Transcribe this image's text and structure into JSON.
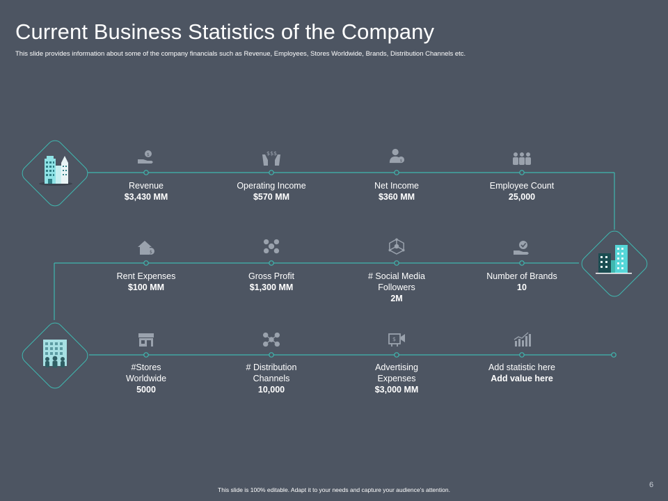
{
  "header": {
    "title": "Current Business Statistics of the Company",
    "subtitle": "This slide provides information about some of the company financials such as Revenue, Employees, Stores Worldwide, Brands, Distribution Channels etc."
  },
  "rows": [
    [
      {
        "icon": "money-hand-icon",
        "label": "Revenue",
        "value": "$3,430 MM"
      },
      {
        "icon": "dollar-hands-icon",
        "label": "Operating Income",
        "value": "$570 MM"
      },
      {
        "icon": "person-dollar-icon",
        "label": "Net Income",
        "value": "$360 MM"
      },
      {
        "icon": "people-group-icon",
        "label": "Employee Count",
        "value": "25,000"
      }
    ],
    [
      {
        "icon": "house-dollar-icon",
        "label": "Rent Expenses",
        "value": "$100 MM"
      },
      {
        "icon": "coins-network-icon",
        "label": "Gross Profit",
        "value": "$1,300 MM"
      },
      {
        "icon": "social-network-icon",
        "label": "# Social Media Followers",
        "value": "2M"
      },
      {
        "icon": "hand-check-icon",
        "label": "Number of Brands",
        "value": "10"
      }
    ],
    [
      {
        "icon": "store-icon",
        "label": "#Stores Worldwide",
        "value": "5000"
      },
      {
        "icon": "distribution-network-icon",
        "label": "# Distribution Channels",
        "value": "10,000"
      },
      {
        "icon": "advertising-board-icon",
        "label": "Advertising Expenses",
        "value": "$3,000 MM"
      },
      {
        "icon": "bar-chart-icon",
        "label": "Add statistic here",
        "value": "Add value here"
      }
    ]
  ],
  "footer": "This slide is 100% editable. Adapt it to your needs and capture your audience’s attention.",
  "page_number": "6",
  "colors": {
    "background": "#4d5562",
    "accent": "#3fb8b0",
    "icon": "#9aa2ad"
  }
}
